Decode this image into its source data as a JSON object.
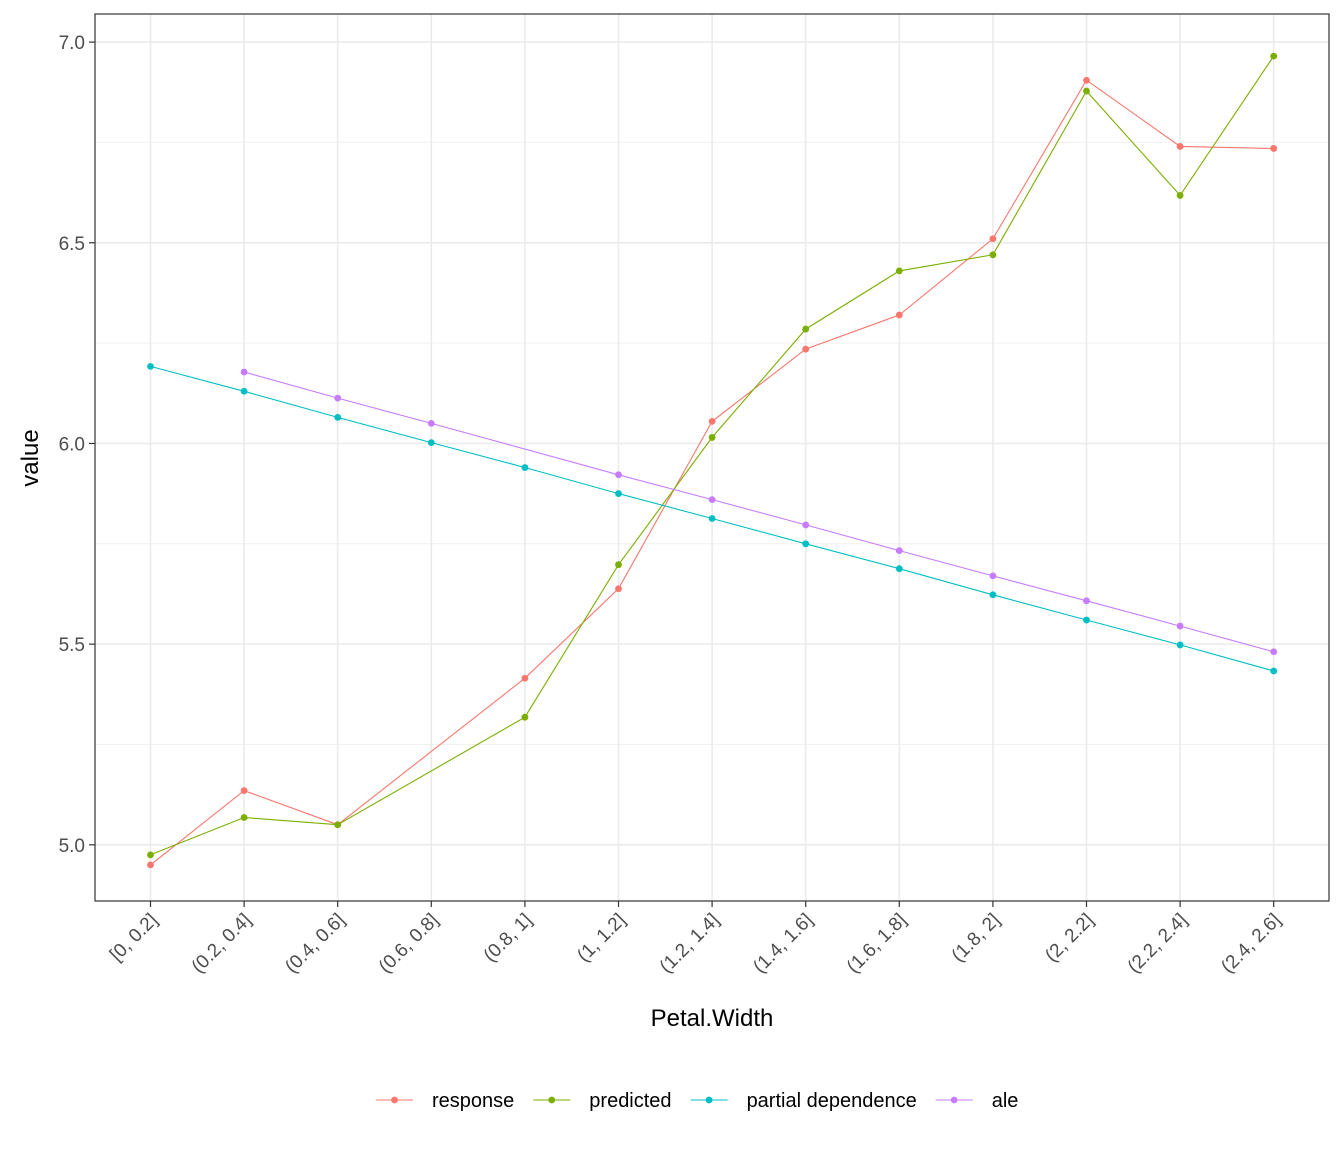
{
  "chart_data": {
    "type": "line",
    "title": "",
    "xlabel": "Petal.Width",
    "ylabel": "value",
    "categories": [
      "[0, 0.2]",
      "(0.2, 0.4]",
      "(0.4, 0.6]",
      "(0.6, 0.8]",
      "(0.8, 1]",
      "(1, 1.2]",
      "(1.2, 1.4]",
      "(1.4, 1.6]",
      "(1.6, 1.8]",
      "(1.8, 2]",
      "(2, 2.2]",
      "(2.2, 2.4]",
      "(2.4, 2.6]"
    ],
    "ylim": [
      4.86,
      7.07
    ],
    "yticks": [
      "5.0",
      "5.5",
      "6.0",
      "6.5",
      "7.0"
    ],
    "grid": true,
    "legend_position": "bottom",
    "series": [
      {
        "name": "response",
        "color": "#F8766D",
        "values": [
          4.95,
          5.135,
          5.05,
          null,
          5.415,
          5.638,
          6.055,
          6.235,
          6.32,
          6.51,
          6.905,
          6.74,
          6.735
        ]
      },
      {
        "name": "predicted",
        "color": "#7CAE00",
        "values": [
          4.975,
          5.068,
          5.05,
          null,
          5.318,
          5.698,
          6.015,
          6.285,
          6.43,
          6.47,
          6.878,
          6.618,
          6.965
        ]
      },
      {
        "name": "partial dependence",
        "color": "#00BFC4",
        "values": [
          6.192,
          6.13,
          6.065,
          6.002,
          5.94,
          5.875,
          5.813,
          5.75,
          5.688,
          5.623,
          5.56,
          5.498,
          5.433
        ]
      },
      {
        "name": "ale",
        "color": "#C77CFF",
        "values": [
          null,
          6.178,
          6.113,
          6.05,
          null,
          5.922,
          5.86,
          5.797,
          5.733,
          5.67,
          5.608,
          5.545,
          5.481
        ]
      }
    ]
  }
}
